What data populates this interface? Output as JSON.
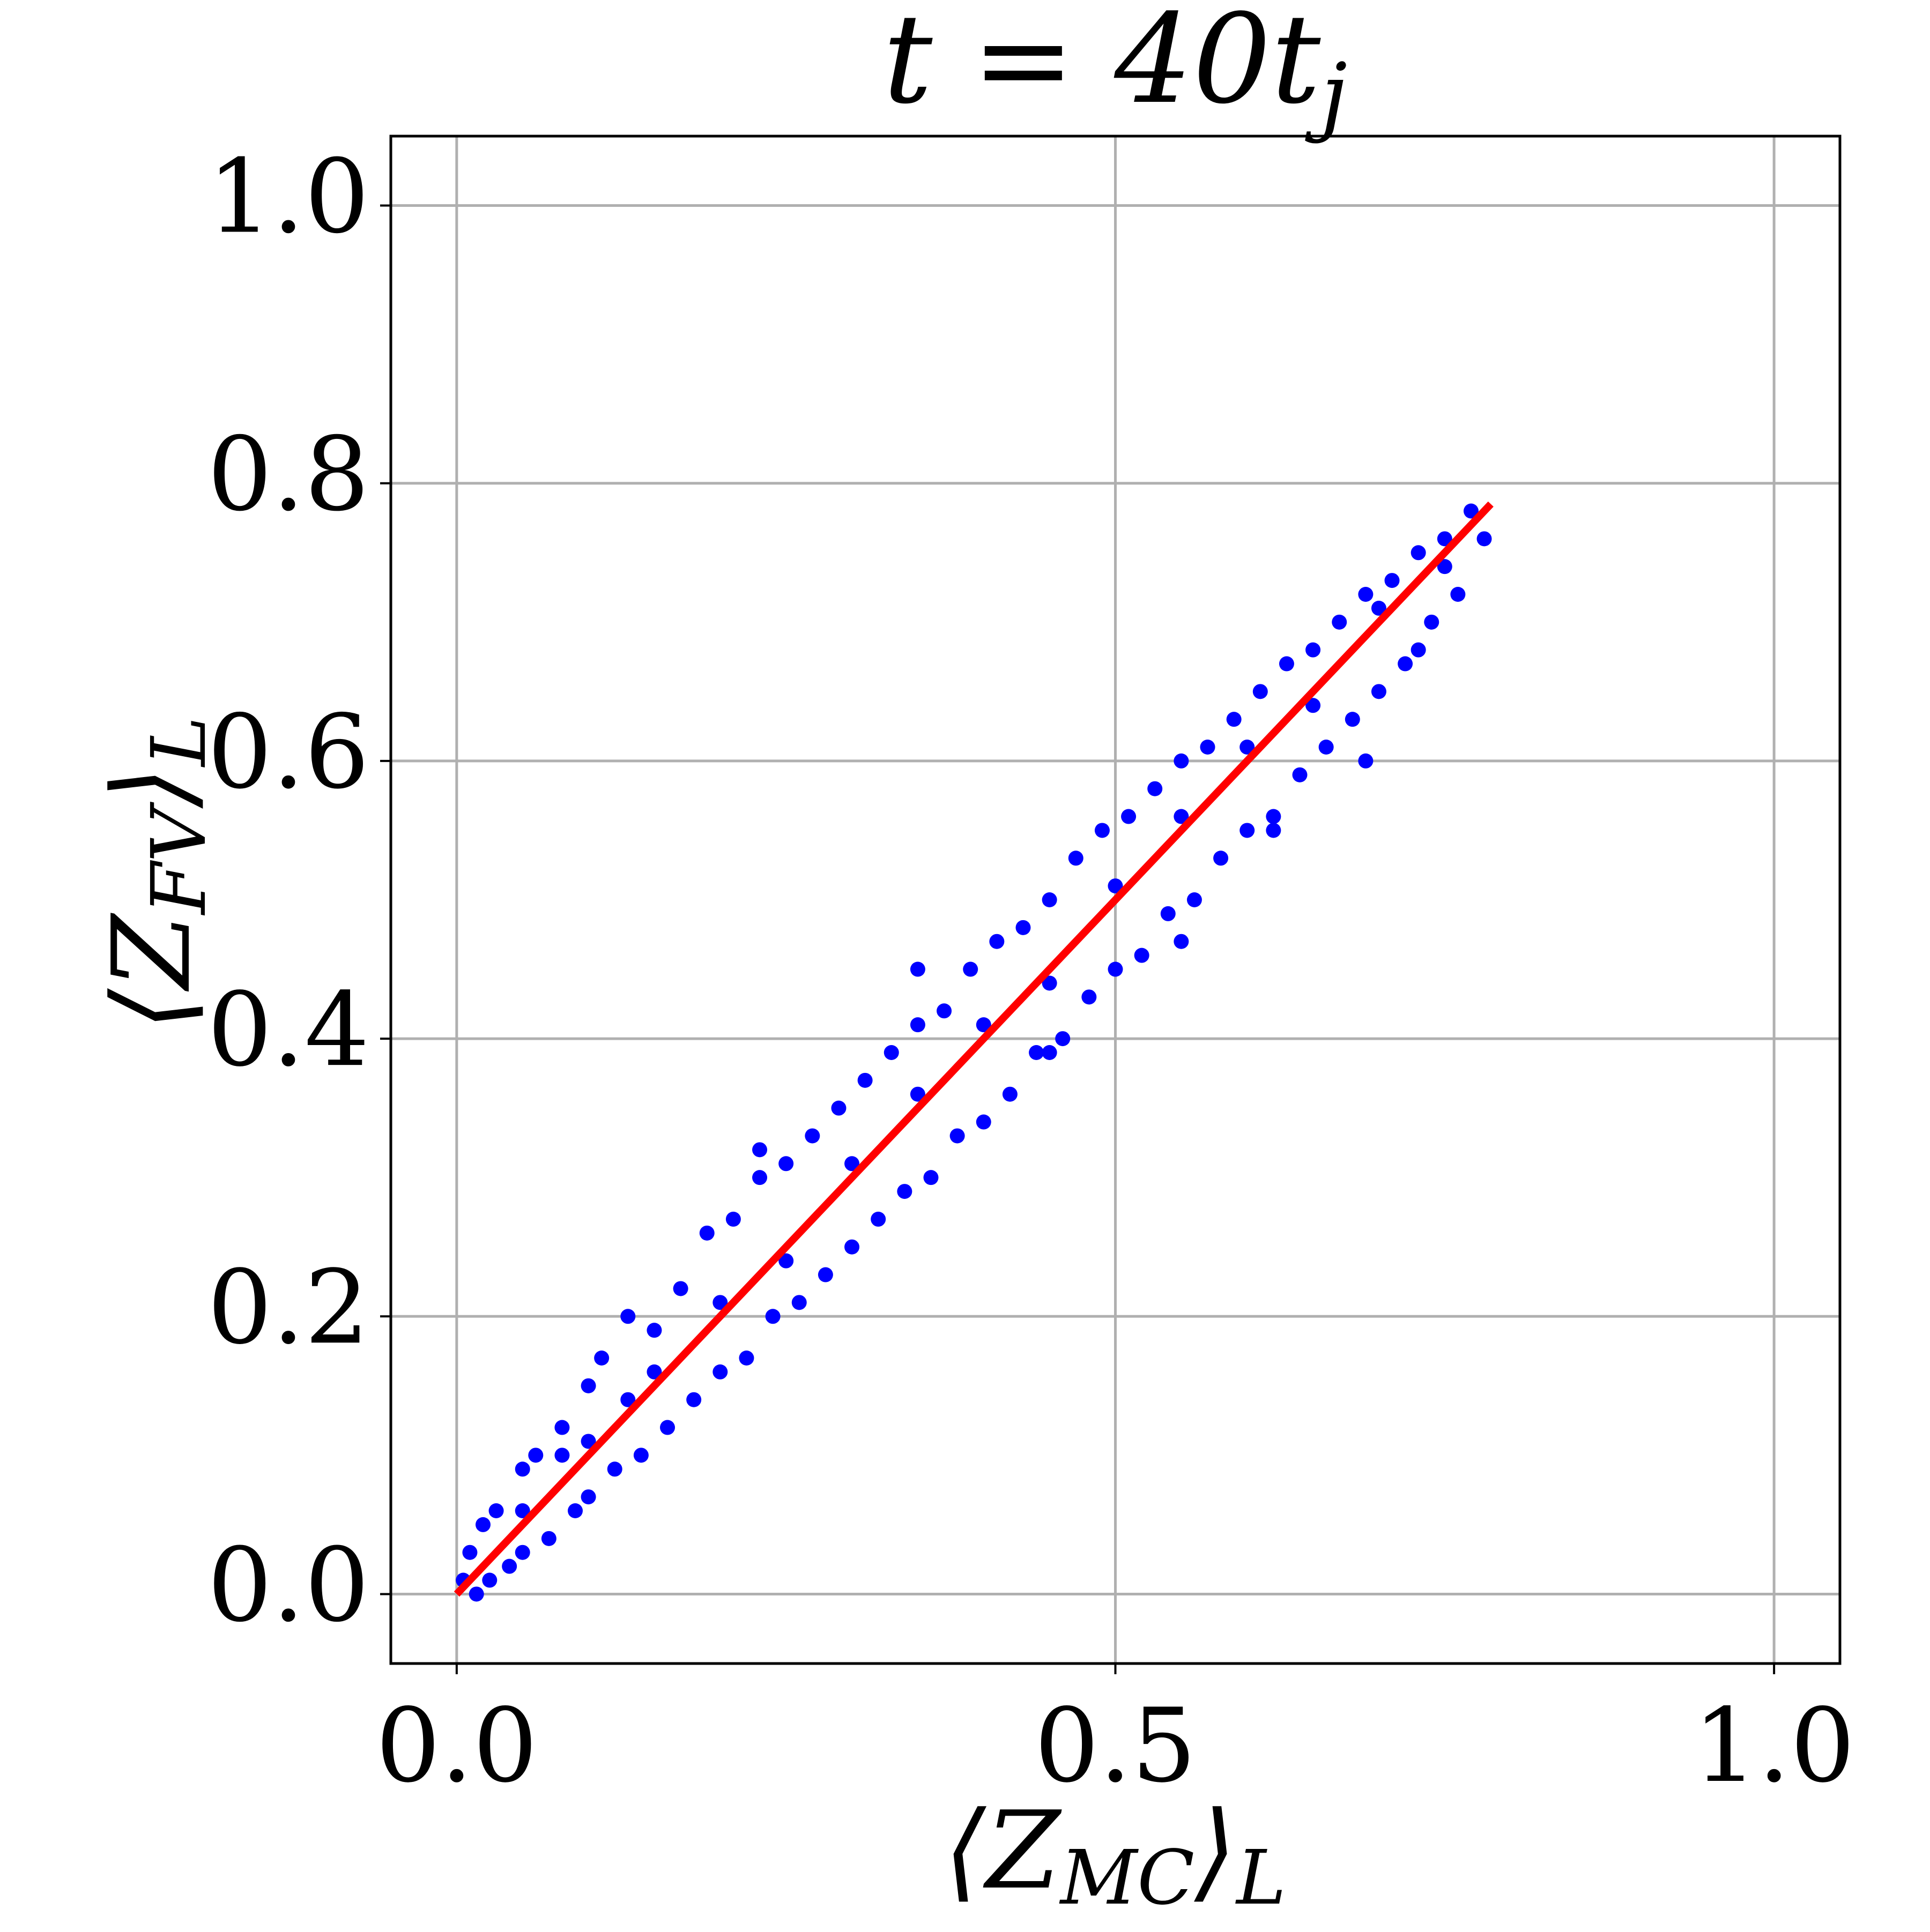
{
  "chart_data": {
    "type": "scatter",
    "title": {
      "text": "t = 40t",
      "sub": "j"
    },
    "x_label": {
      "open": "⟨Z",
      "sub": "MC",
      "close": "⟩",
      "sub2": "L"
    },
    "y_label": {
      "open": "⟨Z",
      "sub": "FV",
      "close": "⟩",
      "sub2": "L"
    },
    "xlim": [
      -0.05,
      1.05
    ],
    "ylim": [
      -0.05,
      1.05
    ],
    "xticks": [
      {
        "value": 0,
        "label": "0.0"
      },
      0.5,
      {
        "value": 1,
        "label": "1.0"
      }
    ],
    "yticks": [
      {
        "value": 0,
        "label": "0.0"
      },
      0.2,
      0.4,
      0.6,
      0.8,
      {
        "value": 1,
        "label": "1.0"
      }
    ],
    "grid": true,
    "series": [
      {
        "color": "#0000ff",
        "x": [
          0.005,
          0.01,
          0.015,
          0.02,
          0.025,
          0.03,
          0.04,
          0.05,
          0.05,
          0.06,
          0.07,
          0.08,
          0.09,
          0.1,
          0.1,
          0.11,
          0.12,
          0.13,
          0.14,
          0.15,
          0.16,
          0.17,
          0.18,
          0.19,
          0.2,
          0.21,
          0.22,
          0.23,
          0.24,
          0.25,
          0.26,
          0.27,
          0.28,
          0.29,
          0.3,
          0.31,
          0.32,
          0.33,
          0.34,
          0.35,
          0.36,
          0.37,
          0.38,
          0.39,
          0.4,
          0.41,
          0.42,
          0.43,
          0.44,
          0.45,
          0.46,
          0.47,
          0.48,
          0.49,
          0.5,
          0.51,
          0.52,
          0.53,
          0.54,
          0.55,
          0.56,
          0.57,
          0.58,
          0.59,
          0.6,
          0.61,
          0.62,
          0.63,
          0.64,
          0.65,
          0.66,
          0.67,
          0.68,
          0.69,
          0.7,
          0.71,
          0.72,
          0.73,
          0.74,
          0.75,
          0.76,
          0.77,
          0.78,
          0.05,
          0.1,
          0.15,
          0.2,
          0.25,
          0.3,
          0.35,
          0.4,
          0.45,
          0.5,
          0.55,
          0.6,
          0.65,
          0.7,
          0.75,
          0.45,
          0.55,
          0.23,
          0.35,
          0.62,
          0.69,
          0.73,
          0.08,
          0.13
        ],
        "y": [
          0.01,
          0.03,
          0.0,
          0.05,
          0.01,
          0.06,
          0.02,
          0.09,
          0.03,
          0.1,
          0.04,
          0.12,
          0.06,
          0.15,
          0.07,
          0.17,
          0.09,
          0.2,
          0.1,
          0.19,
          0.12,
          0.22,
          0.14,
          0.26,
          0.16,
          0.27,
          0.17,
          0.3,
          0.2,
          0.31,
          0.21,
          0.33,
          0.23,
          0.35,
          0.25,
          0.37,
          0.27,
          0.39,
          0.29,
          0.41,
          0.3,
          0.42,
          0.33,
          0.45,
          0.34,
          0.47,
          0.36,
          0.48,
          0.39,
          0.5,
          0.4,
          0.53,
          0.43,
          0.55,
          0.45,
          0.56,
          0.46,
          0.58,
          0.49,
          0.6,
          0.5,
          0.61,
          0.53,
          0.63,
          0.55,
          0.65,
          0.56,
          0.67,
          0.59,
          0.68,
          0.61,
          0.7,
          0.63,
          0.72,
          0.65,
          0.73,
          0.67,
          0.75,
          0.7,
          0.76,
          0.72,
          0.78,
          0.76,
          0.06,
          0.11,
          0.16,
          0.21,
          0.24,
          0.31,
          0.36,
          0.41,
          0.44,
          0.51,
          0.56,
          0.61,
          0.64,
          0.71,
          0.74,
          0.39,
          0.47,
          0.32,
          0.45,
          0.55,
          0.6,
          0.68,
          0.1,
          0.14
        ]
      },
      {
        "type": "line",
        "color": "#ff0000",
        "x": [
          0,
          0.785
        ],
        "y": [
          0,
          0.785
        ]
      }
    ]
  }
}
